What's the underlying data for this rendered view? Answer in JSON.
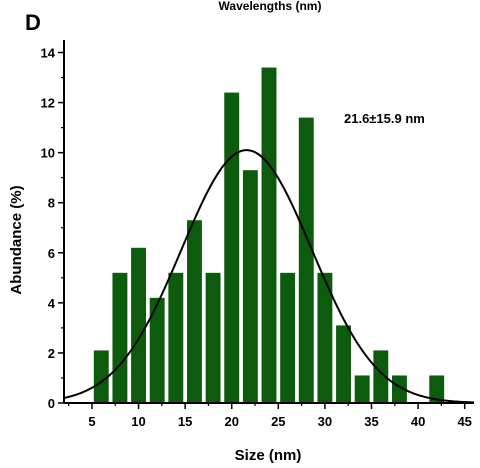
{
  "top_title": "Wavelengths (nm)",
  "panel_label": "D",
  "chart_data": {
    "type": "bar",
    "xlabel": "Size (nm)",
    "ylabel": "Abundance (%)",
    "xlim": [
      2,
      46
    ],
    "ylim": [
      0,
      14.5
    ],
    "xticks": [
      5,
      10,
      15,
      20,
      25,
      30,
      35,
      40,
      45
    ],
    "yticks": [
      0,
      2,
      4,
      6,
      8,
      10,
      12,
      14
    ],
    "bar_color": "#0d5c0d",
    "curve_color": "#000000",
    "annotation": "21.6±15.9 nm",
    "bars": [
      {
        "x": 6.0,
        "value": 2.1
      },
      {
        "x": 8.0,
        "value": 5.2
      },
      {
        "x": 10.0,
        "value": 6.2
      },
      {
        "x": 12.0,
        "value": 4.2
      },
      {
        "x": 14.0,
        "value": 5.2
      },
      {
        "x": 16.0,
        "value": 7.3
      },
      {
        "x": 18.0,
        "value": 5.2
      },
      {
        "x": 20.0,
        "value": 12.4
      },
      {
        "x": 22.0,
        "value": 9.3
      },
      {
        "x": 24.0,
        "value": 13.4
      },
      {
        "x": 26.0,
        "value": 5.2
      },
      {
        "x": 28.0,
        "value": 11.4
      },
      {
        "x": 30.0,
        "value": 5.2
      },
      {
        "x": 32.0,
        "value": 3.1
      },
      {
        "x": 34.0,
        "value": 1.1
      },
      {
        "x": 36.0,
        "value": 2.1
      },
      {
        "x": 38.0,
        "value": 1.1
      },
      {
        "x": 42.0,
        "value": 1.1
      }
    ],
    "fit_curve": {
      "type": "gaussian",
      "center": 21.6,
      "peak": 10.1,
      "sigma": 7.0
    }
  }
}
